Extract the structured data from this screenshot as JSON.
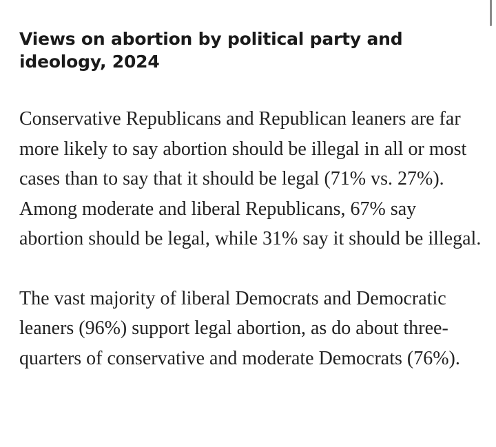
{
  "article": {
    "title": "Views on abortion by political party and ideology, 2024",
    "paragraphs": [
      "Conservative Republicans and Republican leaners are far more likely to say abortion should be illegal in all or most cases than to say that it should be legal (71% vs. 27%). Among moderate and liberal Republicans, 67% say abortion should be legal, while 31% say it should be illegal.",
      "The vast majority of liberal Democrats and Democratic leaners (96%) support legal abortion, as do about three-quarters of conservative and moderate Democrats (76%)."
    ]
  }
}
